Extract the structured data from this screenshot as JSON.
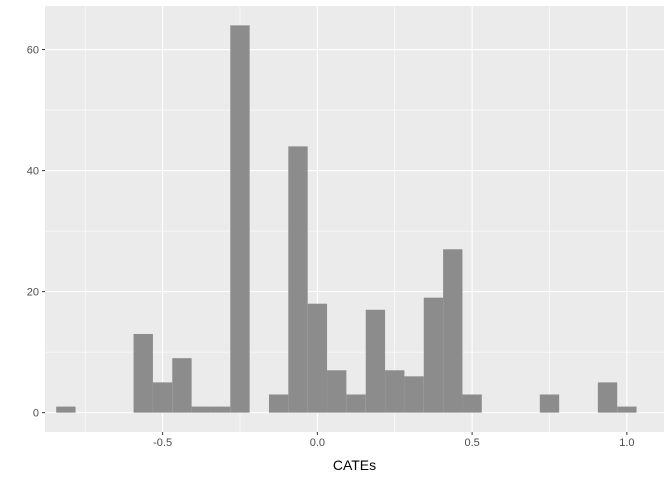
{
  "chart_data": {
    "type": "bar",
    "subtype": "histogram",
    "title": "",
    "xlabel": "CATEs",
    "ylabel": "",
    "xlim": [
      -0.88,
      1.12
    ],
    "ylim": [
      -3.2,
      67.2
    ],
    "x_ticks": [
      {
        "value": -0.5,
        "label": "-0.5"
      },
      {
        "value": 0.0,
        "label": "0.0"
      },
      {
        "value": 0.5,
        "label": "0.5"
      },
      {
        "value": 1.0,
        "label": "1.0"
      }
    ],
    "y_ticks": [
      {
        "value": 0,
        "label": "0"
      },
      {
        "value": 20,
        "label": "20"
      },
      {
        "value": 40,
        "label": "40"
      },
      {
        "value": 60,
        "label": "60"
      }
    ],
    "grid": true,
    "bin_width": 0.0625,
    "bins": [
      {
        "x0": -0.8438,
        "x1": -0.7813,
        "count": 1
      },
      {
        "x0": -0.7813,
        "x1": -0.7188,
        "count": 0
      },
      {
        "x0": -0.7188,
        "x1": -0.6563,
        "count": 0
      },
      {
        "x0": -0.6563,
        "x1": -0.5938,
        "count": 0
      },
      {
        "x0": -0.5938,
        "x1": -0.5313,
        "count": 13
      },
      {
        "x0": -0.5313,
        "x1": -0.4688,
        "count": 5
      },
      {
        "x0": -0.4688,
        "x1": -0.4063,
        "count": 9
      },
      {
        "x0": -0.4063,
        "x1": -0.3438,
        "count": 1
      },
      {
        "x0": -0.3438,
        "x1": -0.2813,
        "count": 1
      },
      {
        "x0": -0.2813,
        "x1": -0.2188,
        "count": 64
      },
      {
        "x0": -0.2188,
        "x1": -0.1563,
        "count": 0
      },
      {
        "x0": -0.1563,
        "x1": -0.0938,
        "count": 3
      },
      {
        "x0": -0.0938,
        "x1": -0.0313,
        "count": 44
      },
      {
        "x0": -0.0313,
        "x1": 0.0313,
        "count": 18
      },
      {
        "x0": 0.0313,
        "x1": 0.0938,
        "count": 7
      },
      {
        "x0": 0.0938,
        "x1": 0.1563,
        "count": 3
      },
      {
        "x0": 0.1563,
        "x1": 0.2188,
        "count": 17
      },
      {
        "x0": 0.2188,
        "x1": 0.2813,
        "count": 7
      },
      {
        "x0": 0.2813,
        "x1": 0.3438,
        "count": 6
      },
      {
        "x0": 0.3438,
        "x1": 0.4063,
        "count": 19
      },
      {
        "x0": 0.4063,
        "x1": 0.4688,
        "count": 27
      },
      {
        "x0": 0.4688,
        "x1": 0.5313,
        "count": 3
      },
      {
        "x0": 0.5313,
        "x1": 0.5938,
        "count": 0
      },
      {
        "x0": 0.5938,
        "x1": 0.6563,
        "count": 0
      },
      {
        "x0": 0.6563,
        "x1": 0.7188,
        "count": 0
      },
      {
        "x0": 0.7188,
        "x1": 0.7813,
        "count": 3
      },
      {
        "x0": 0.7813,
        "x1": 0.8438,
        "count": 0
      },
      {
        "x0": 0.8438,
        "x1": 0.9063,
        "count": 0
      },
      {
        "x0": 0.9063,
        "x1": 0.9688,
        "count": 5
      },
      {
        "x0": 0.9688,
        "x1": 1.0313,
        "count": 1
      }
    ],
    "colors": {
      "panel_background": "#ebebeb",
      "grid_major": "#ffffff",
      "bar_fill": "#8c8c8c",
      "tick_text": "#4d4d4d",
      "tick_mark": "#333333"
    }
  }
}
